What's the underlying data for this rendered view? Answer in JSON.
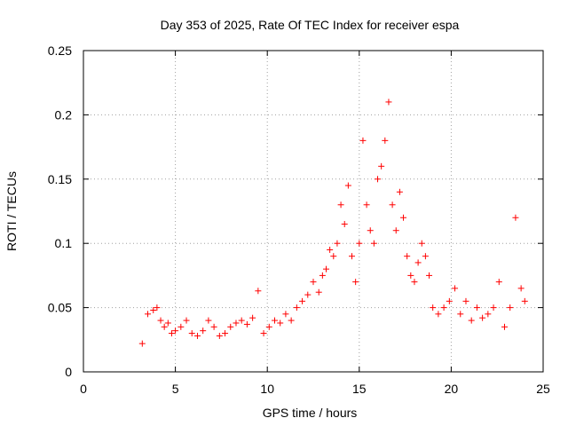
{
  "chart_data": {
    "type": "scatter",
    "title": "Day 353 of 2025, Rate Of TEC Index for receiver espa",
    "xlabel": "GPS time / hours",
    "ylabel": "ROTI / TECUs",
    "xlim": [
      0,
      25
    ],
    "ylim": [
      0,
      0.25
    ],
    "xticks": [
      "0",
      "5",
      "10",
      "15",
      "20",
      "25"
    ],
    "yticks": [
      "0",
      "0.05",
      "0.1",
      "0.15",
      "0.2",
      "0.25"
    ],
    "grid": true,
    "marker": "+",
    "color": "#ff0000",
    "series": [
      {
        "x": [
          3.2,
          3.5,
          3.8,
          4.0,
          4.2,
          4.4,
          4.6,
          4.8,
          5.0,
          5.3,
          5.6,
          5.9,
          6.2,
          6.5,
          6.8,
          7.1,
          7.4,
          7.7,
          8.0,
          8.3,
          8.6,
          8.9,
          9.2,
          9.5,
          9.8,
          10.1,
          10.4,
          10.7,
          11.0,
          11.3,
          11.6,
          11.9,
          12.2,
          12.5,
          12.8,
          13.0,
          13.2,
          13.4,
          13.6,
          13.8,
          14.0,
          14.2,
          14.4,
          14.6,
          14.8,
          15.0,
          15.2,
          15.4,
          15.6,
          15.8,
          16.0,
          16.2,
          16.4,
          16.6,
          16.8,
          17.0,
          17.2,
          17.4,
          17.6,
          17.8,
          18.0,
          18.2,
          18.4,
          18.6,
          18.8,
          19.0,
          19.3,
          19.6,
          19.9,
          20.2,
          20.5,
          20.8,
          21.1,
          21.4,
          21.7,
          22.0,
          22.3,
          22.6,
          22.9,
          23.2,
          23.5,
          23.8,
          24.0
        ],
        "y": [
          0.022,
          0.045,
          0.048,
          0.05,
          0.04,
          0.035,
          0.038,
          0.03,
          0.032,
          0.035,
          0.04,
          0.03,
          0.028,
          0.032,
          0.04,
          0.035,
          0.028,
          0.03,
          0.035,
          0.038,
          0.04,
          0.037,
          0.042,
          0.063,
          0.03,
          0.035,
          0.04,
          0.038,
          0.045,
          0.04,
          0.05,
          0.055,
          0.06,
          0.07,
          0.062,
          0.075,
          0.08,
          0.095,
          0.09,
          0.1,
          0.13,
          0.115,
          0.145,
          0.09,
          0.07,
          0.1,
          0.18,
          0.13,
          0.11,
          0.1,
          0.15,
          0.16,
          0.18,
          0.21,
          0.13,
          0.11,
          0.14,
          0.12,
          0.09,
          0.075,
          0.07,
          0.085,
          0.1,
          0.09,
          0.075,
          0.05,
          0.045,
          0.05,
          0.055,
          0.065,
          0.045,
          0.055,
          0.04,
          0.05,
          0.042,
          0.045,
          0.05,
          0.07,
          0.035,
          0.05,
          0.12,
          0.065,
          0.055
        ]
      }
    ]
  }
}
